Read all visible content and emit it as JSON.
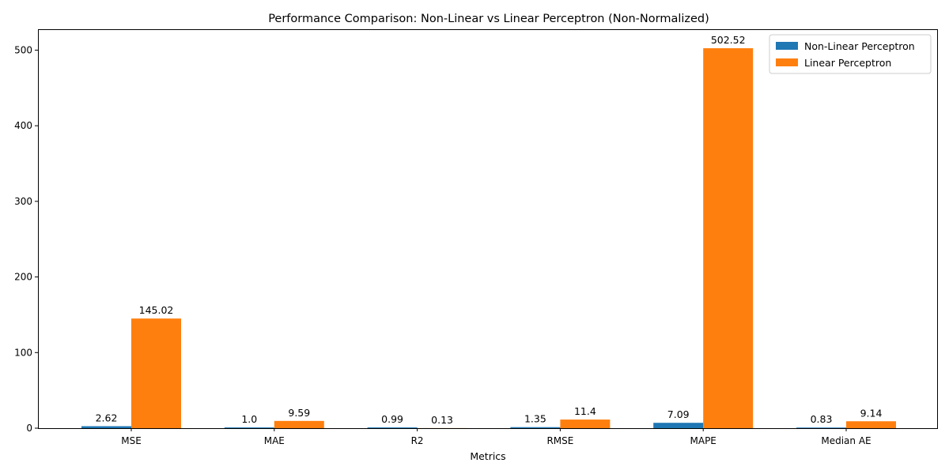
{
  "chart_data": {
    "type": "bar",
    "title": "Performance Comparison: Non-Linear vs Linear Perceptron (Non-Normalized)",
    "xlabel": "Metrics",
    "ylabel": "",
    "categories": [
      "MSE",
      "MAE",
      "R2",
      "RMSE",
      "MAPE",
      "Median AE"
    ],
    "series": [
      {
        "name": "Non-Linear Perceptron",
        "color": "#1f77b4",
        "values": [
          2.62,
          1.0,
          0.99,
          1.35,
          7.09,
          0.83
        ],
        "labels": [
          "2.62",
          "1.0",
          "0.99",
          "1.35",
          "7.09",
          "0.83"
        ]
      },
      {
        "name": "Linear Perceptron",
        "color": "#ff7f0e",
        "values": [
          145.02,
          9.59,
          0.13,
          11.4,
          502.52,
          9.14
        ],
        "labels": [
          "145.02",
          "9.59",
          "0.13",
          "11.4",
          "502.52",
          "9.14"
        ]
      }
    ],
    "ylim": [
      0,
      527.65
    ],
    "yticks": [
      "0",
      "100",
      "200",
      "300",
      "400",
      "500"
    ],
    "legend_position": "top-right",
    "grid": false
  }
}
